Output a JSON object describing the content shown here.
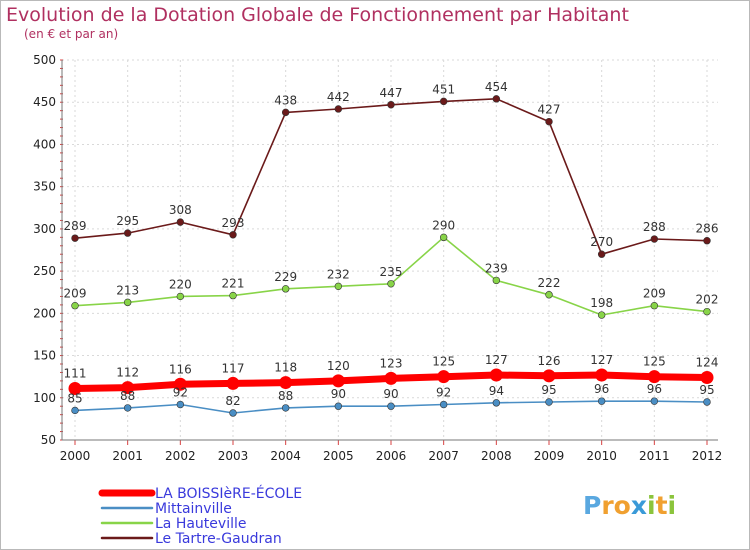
{
  "chart_data": {
    "type": "line",
    "title": "Evolution de la Dotation Globale de Fonctionnement par Habitant",
    "subtitle": "(en € et par an)",
    "xlabel": "",
    "ylabel": "",
    "x": [
      "2000",
      "2001",
      "2002",
      "2003",
      "2004",
      "2005",
      "2006",
      "2007",
      "2008",
      "2009",
      "2010",
      "2011",
      "2012"
    ],
    "ylim": [
      50,
      500
    ],
    "yticks": [
      50,
      100,
      150,
      200,
      250,
      300,
      350,
      400,
      450,
      500
    ],
    "series": [
      {
        "name": "LA BOISSIèRE-ÉCOLE",
        "color": "#ff0000",
        "values": [
          111,
          112,
          116,
          117,
          118,
          120,
          123,
          125,
          127,
          126,
          127,
          125,
          124
        ]
      },
      {
        "name": "Mittainville",
        "color": "#4a8ec4",
        "values": [
          85,
          88,
          92,
          82,
          88,
          90,
          90,
          92,
          94,
          95,
          96,
          96,
          95
        ]
      },
      {
        "name": "La Hauteville",
        "color": "#88d448",
        "values": [
          209,
          213,
          220,
          221,
          229,
          232,
          235,
          290,
          239,
          222,
          198,
          209,
          202
        ]
      },
      {
        "name": "Le Tartre-Gaudran",
        "color": "#6b1a1a",
        "values": [
          289,
          295,
          308,
          293,
          438,
          442,
          447,
          451,
          454,
          427,
          270,
          288,
          286
        ]
      }
    ]
  },
  "logo": {
    "letters": [
      "P",
      "r",
      "o",
      "x",
      "i",
      "t",
      "i"
    ],
    "colors": [
      "#5aa8e0",
      "#f0a030",
      "#f0a030",
      "#3a9ad8",
      "#8bc43c",
      "#f0a030",
      "#8bc43c"
    ]
  }
}
